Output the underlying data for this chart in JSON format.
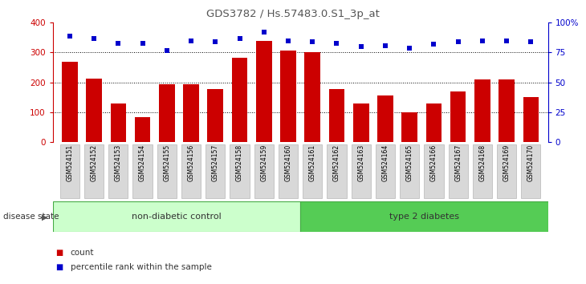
{
  "title": "GDS3782 / Hs.57483.0.S1_3p_at",
  "samples": [
    "GSM524151",
    "GSM524152",
    "GSM524153",
    "GSM524154",
    "GSM524155",
    "GSM524156",
    "GSM524157",
    "GSM524158",
    "GSM524159",
    "GSM524160",
    "GSM524161",
    "GSM524162",
    "GSM524163",
    "GSM524164",
    "GSM524165",
    "GSM524166",
    "GSM524167",
    "GSM524168",
    "GSM524169",
    "GSM524170"
  ],
  "counts": [
    270,
    213,
    128,
    83,
    193,
    193,
    177,
    283,
    340,
    308,
    300,
    177,
    130,
    157,
    100,
    130,
    170,
    210,
    210,
    152
  ],
  "percentiles": [
    89,
    87,
    83,
    83,
    77,
    85,
    84,
    87,
    92,
    85,
    84,
    83,
    80,
    81,
    79,
    82,
    84,
    85,
    85,
    84
  ],
  "group1_label": "non-diabetic control",
  "group2_label": "type 2 diabetes",
  "group1_count": 10,
  "group2_count": 10,
  "bar_color": "#cc0000",
  "dot_color": "#0000cc",
  "ylim_left": [
    0,
    400
  ],
  "ylim_right": [
    0,
    100
  ],
  "yticks_left": [
    0,
    100,
    200,
    300,
    400
  ],
  "yticks_right": [
    0,
    25,
    50,
    75,
    100
  ],
  "group1_bg": "#ccffcc",
  "group2_bg": "#55cc55",
  "group_border": "#44aa44",
  "xticklabel_bg": "#d8d8d8",
  "xticklabel_border": "#aaaaaa",
  "legend_count_label": "count",
  "legend_pct_label": "percentile rank within the sample",
  "disease_state_label": "disease state",
  "title_color": "#555555",
  "left_axis_color": "#cc0000",
  "right_axis_color": "#0000cc",
  "grid_color": "#000000",
  "fig_width": 7.3,
  "fig_height": 3.54,
  "dpi": 100
}
